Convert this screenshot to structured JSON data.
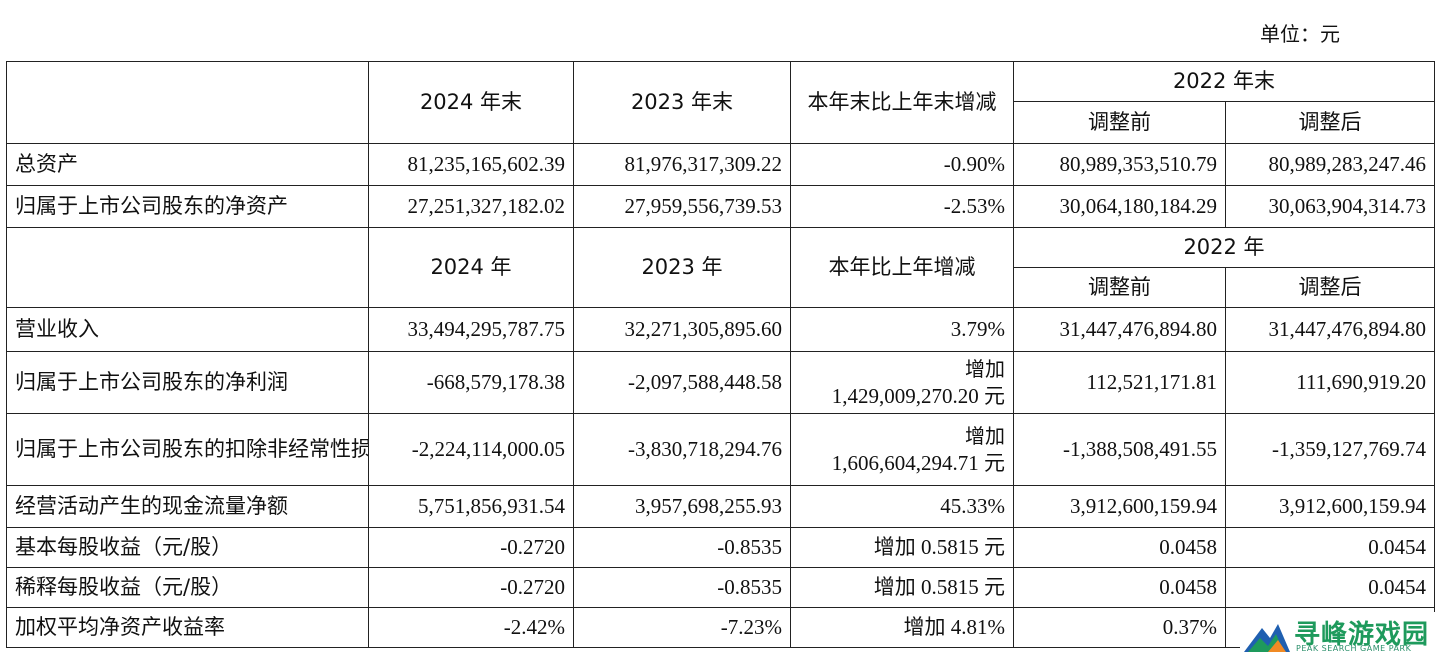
{
  "unit_label": "单位：元",
  "section1": {
    "col_2024": "2024 年末",
    "col_2023": "2023 年末",
    "col_change": "本年末比上年末增减",
    "col_2022": "2022 年末",
    "col_before": "调整前",
    "col_after": "调整后",
    "rows": [
      {
        "label": "总资产",
        "v2024": "81,235,165,602.39",
        "v2023": "81,976,317,309.22",
        "change": "-0.90%",
        "before": "80,989,353,510.79",
        "after": "80,989,283,247.46"
      },
      {
        "label": "归属于上市公司股东的净资产",
        "v2024": "27,251,327,182.02",
        "v2023": "27,959,556,739.53",
        "change": "-2.53%",
        "before": "30,064,180,184.29",
        "after": "30,063,904,314.73"
      }
    ]
  },
  "section2": {
    "col_2024": "2024 年",
    "col_2023": "2023 年",
    "col_change": "本年比上年增减",
    "col_2022": "2022 年",
    "col_before": "调整前",
    "col_after": "调整后",
    "rows": [
      {
        "label": "营业收入",
        "v2024": "33,494,295,787.75",
        "v2023": "32,271,305,895.60",
        "change": "3.79%",
        "before": "31,447,476,894.80",
        "after": "31,447,476,894.80"
      },
      {
        "label": "归属于上市公司股东的净利润",
        "v2024": "-668,579,178.38",
        "v2023": "-2,097,588,448.58",
        "change_line1": "增加",
        "change_line2": "1,429,009,270.20 元",
        "before": "112,521,171.81",
        "after": "111,690,919.20"
      },
      {
        "label": "归属于上市公司股东的扣除非经常性损益的净利润",
        "v2024": "-2,224,114,000.05",
        "v2023": "-3,830,718,294.76",
        "change_line1": "增加",
        "change_line2": "1,606,604,294.71 元",
        "before": "-1,388,508,491.55",
        "after": "-1,359,127,769.74"
      },
      {
        "label": "经营活动产生的现金流量净额",
        "v2024": "5,751,856,931.54",
        "v2023": "3,957,698,255.93",
        "change": "45.33%",
        "before": "3,912,600,159.94",
        "after": "3,912,600,159.94"
      },
      {
        "label": "基本每股收益（元/股）",
        "v2024": "-0.2720",
        "v2023": "-0.8535",
        "change": "增加 0.5815 元",
        "before": "0.0458",
        "after": "0.0454"
      },
      {
        "label": "稀释每股收益（元/股）",
        "v2024": "-0.2720",
        "v2023": "-0.8535",
        "change": "增加 0.5815 元",
        "before": "0.0458",
        "after": "0.0454"
      },
      {
        "label": "加权平均净资产收益率",
        "v2024": "-2.42%",
        "v2023": "-7.23%",
        "change": "增加 4.81%",
        "before": "0.37%",
        "after": ""
      }
    ]
  },
  "watermark": {
    "title": "寻峰游戏园",
    "subtitle": "PEAK SEARCH GAME PARK",
    "colors": {
      "green": "#1e9a5c",
      "blue": "#1f5fb0",
      "orange": "#f08a24"
    }
  }
}
